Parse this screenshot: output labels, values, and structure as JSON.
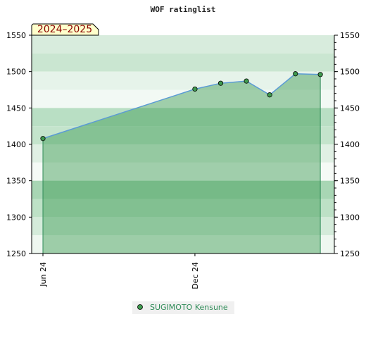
{
  "chart_data": {
    "type": "area",
    "title": "WOF ratinglist",
    "season_badge": "2024–2025",
    "xlabel": "",
    "ylabel": "",
    "ylim": [
      1250,
      1550
    ],
    "yticks": [
      1250,
      1300,
      1350,
      1400,
      1450,
      1500,
      1550
    ],
    "xlim": [
      "2024-06-01",
      "2025-06-01"
    ],
    "xticks": [
      {
        "date": "2024-06-01",
        "label": "Jun 24"
      },
      {
        "date": "2024-12-01",
        "label": "Dec 24"
      }
    ],
    "grid": false,
    "legend_placement": "bottom-center",
    "series": [
      {
        "name": "SUGIMOTO Kensune",
        "points": [
          {
            "x": "2024-06-01",
            "y": 1408
          },
          {
            "x": "2024-12-01",
            "y": 1476
          },
          {
            "x": "2025-01-01",
            "y": 1484
          },
          {
            "x": "2025-02-01",
            "y": 1487
          },
          {
            "x": "2025-03-01",
            "y": 1468
          },
          {
            "x": "2025-04-01",
            "y": 1497
          },
          {
            "x": "2025-05-01",
            "y": 1496
          }
        ]
      }
    ],
    "colors": {
      "line": "#5b9bd5",
      "fill": "#3a9a4f",
      "marker": "#3f9a4f",
      "badge_bg": "#ffffcc",
      "legend_text": "#2e8b57"
    }
  }
}
